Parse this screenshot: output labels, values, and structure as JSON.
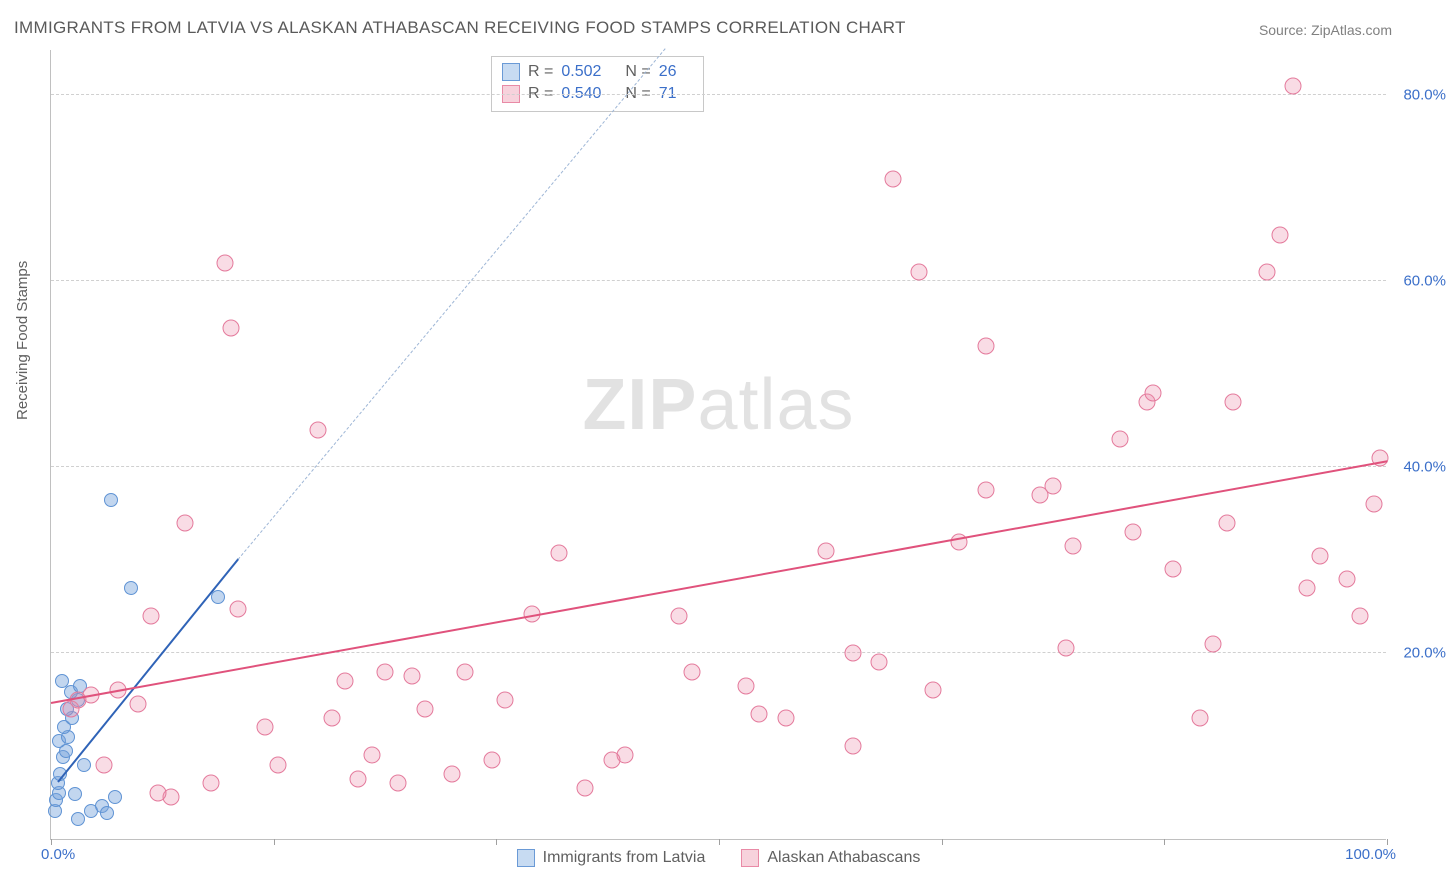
{
  "title": "IMMIGRANTS FROM LATVIA VS ALASKAN ATHABASCAN RECEIVING FOOD STAMPS CORRELATION CHART",
  "source": "Source: ZipAtlas.com",
  "ylabel": "Receiving Food Stamps",
  "watermark_a": "ZIP",
  "watermark_b": "atlas",
  "chart": {
    "type": "scatter",
    "xlim": [
      0,
      100
    ],
    "ylim": [
      0,
      85
    ],
    "x_ticks": [
      0,
      16.67,
      33.33,
      50,
      66.67,
      83.33,
      100
    ],
    "y_grid": [
      20,
      40,
      60,
      80
    ],
    "y_tick_labels": [
      "20.0%",
      "40.0%",
      "60.0%",
      "80.0%"
    ],
    "x_min_label": "0.0%",
    "x_max_label": "100.0%",
    "grid_color": "#d0d0d0",
    "axis_color": "#c0c0c0",
    "tick_label_color": "#3b6fc9",
    "background_color": "#ffffff",
    "series": [
      {
        "name": "Immigrants from Latvia",
        "swatch_fill": "#c7dbf2",
        "swatch_border": "#6a9ad6",
        "point_fill": "rgba(120,165,220,0.45)",
        "point_border": "#5f93d4",
        "point_radius": 7,
        "R": "0.502",
        "N": "26",
        "trend": {
          "x1": 0.5,
          "y1": 6,
          "x2": 14,
          "y2": 30,
          "color": "#2f63b7",
          "width": 2
        },
        "trend_ext": {
          "x1": 14,
          "y1": 30,
          "x2": 46,
          "y2": 85,
          "color": "#9eb6d6",
          "dash": true
        },
        "points": [
          [
            0.3,
            3
          ],
          [
            0.4,
            4.2
          ],
          [
            0.6,
            5
          ],
          [
            0.5,
            6
          ],
          [
            0.7,
            7
          ],
          [
            0.9,
            8.8
          ],
          [
            1.1,
            9.5
          ],
          [
            0.6,
            10.5
          ],
          [
            1.3,
            11
          ],
          [
            1.0,
            12
          ],
          [
            1.6,
            13
          ],
          [
            1.2,
            14
          ],
          [
            2.0,
            15
          ],
          [
            1.5,
            15.8
          ],
          [
            2.2,
            16.5
          ],
          [
            0.8,
            17
          ],
          [
            2.5,
            8
          ],
          [
            3.0,
            3
          ],
          [
            3.8,
            3.5
          ],
          [
            4.2,
            2.8
          ],
          [
            4.8,
            4.5
          ],
          [
            1.8,
            4.8
          ],
          [
            4.5,
            36.5
          ],
          [
            6.0,
            27
          ],
          [
            12.5,
            26
          ],
          [
            2.0,
            2.2
          ]
        ]
      },
      {
        "name": "Alaskan Athabascans",
        "swatch_fill": "#f7d2dc",
        "swatch_border": "#e98aa6",
        "point_fill": "rgba(235,140,170,0.30)",
        "point_border": "#e47a9c",
        "point_radius": 8.5,
        "R": "0.540",
        "N": "71",
        "trend": {
          "x1": 0,
          "y1": 14.5,
          "x2": 100,
          "y2": 40.5,
          "color": "#e0527c",
          "width": 2
        },
        "points": [
          [
            1.5,
            14
          ],
          [
            2,
            15
          ],
          [
            3,
            15.5
          ],
          [
            4,
            8
          ],
          [
            5,
            16
          ],
          [
            6.5,
            14.5
          ],
          [
            7.5,
            24
          ],
          [
            9,
            4.5
          ],
          [
            10,
            34
          ],
          [
            13,
            62
          ],
          [
            13.5,
            55
          ],
          [
            14,
            24.8
          ],
          [
            16,
            12
          ],
          [
            20,
            44
          ],
          [
            21,
            13
          ],
          [
            22,
            17
          ],
          [
            23,
            6.5
          ],
          [
            24,
            9
          ],
          [
            25,
            18
          ],
          [
            26,
            6
          ],
          [
            27,
            17.5
          ],
          [
            28,
            14
          ],
          [
            31,
            18
          ],
          [
            33,
            8.5
          ],
          [
            36,
            24.2
          ],
          [
            38,
            30.8
          ],
          [
            40,
            5.5
          ],
          [
            43,
            9
          ],
          [
            47,
            24
          ],
          [
            52,
            16.5
          ],
          [
            55,
            13
          ],
          [
            58,
            31
          ],
          [
            60,
            20
          ],
          [
            62,
            19
          ],
          [
            63,
            71
          ],
          [
            65,
            61
          ],
          [
            66,
            16
          ],
          [
            68,
            32
          ],
          [
            70,
            53
          ],
          [
            74,
            37
          ],
          [
            75,
            38
          ],
          [
            76.5,
            31.5
          ],
          [
            80,
            43
          ],
          [
            81,
            33
          ],
          [
            82,
            47
          ],
          [
            82.5,
            48
          ],
          [
            84,
            29
          ],
          [
            86,
            13
          ],
          [
            87,
            21
          ],
          [
            88,
            34
          ],
          [
            88.5,
            47
          ],
          [
            91,
            61
          ],
          [
            92,
            65
          ],
          [
            93,
            81
          ],
          [
            94,
            27
          ],
          [
            95,
            30.5
          ],
          [
            97,
            28
          ],
          [
            98,
            24
          ],
          [
            99,
            36
          ],
          [
            99.5,
            41
          ],
          [
            70,
            37.5
          ],
          [
            60,
            10
          ],
          [
            53,
            13.5
          ],
          [
            48,
            18
          ],
          [
            42,
            8.5
          ],
          [
            34,
            15
          ],
          [
            30,
            7
          ],
          [
            17,
            8
          ],
          [
            12,
            6
          ],
          [
            8,
            5
          ],
          [
            76,
            20.5
          ]
        ]
      }
    ]
  },
  "legend": [
    {
      "label": "Immigrants from Latvia",
      "fill": "#c7dbf2",
      "border": "#6a9ad6"
    },
    {
      "label": "Alaskan Athabascans",
      "fill": "#f7d2dc",
      "border": "#e98aa6"
    }
  ]
}
